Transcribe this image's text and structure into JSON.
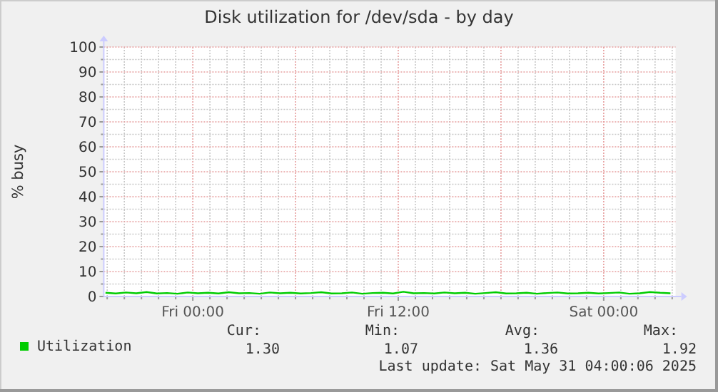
{
  "chart_data": {
    "type": "line",
    "title": "Disk utilization for /dev/sda - by day",
    "ylabel": "% busy",
    "x": [
      "2025-05-29T18:54",
      "2025-05-29T19:30",
      "2025-05-29T20:06",
      "2025-05-29T20:42",
      "2025-05-29T21:18",
      "2025-05-29T21:54",
      "2025-05-29T22:30",
      "2025-05-29T23:06",
      "2025-05-29T23:42",
      "2025-05-30T00:18",
      "2025-05-30T00:54",
      "2025-05-30T01:30",
      "2025-05-30T02:06",
      "2025-05-30T02:42",
      "2025-05-30T03:18",
      "2025-05-30T03:54",
      "2025-05-30T04:30",
      "2025-05-30T05:06",
      "2025-05-30T05:42",
      "2025-05-30T06:18",
      "2025-05-30T06:54",
      "2025-05-30T07:30",
      "2025-05-30T08:06",
      "2025-05-30T08:42",
      "2025-05-30T09:18",
      "2025-05-30T09:54",
      "2025-05-30T10:30",
      "2025-05-30T11:06",
      "2025-05-30T11:42",
      "2025-05-30T12:18",
      "2025-05-30T12:54",
      "2025-05-30T13:30",
      "2025-05-30T14:06",
      "2025-05-30T14:42",
      "2025-05-30T15:18",
      "2025-05-30T15:54",
      "2025-05-30T16:30",
      "2025-05-30T17:06",
      "2025-05-30T17:42",
      "2025-05-30T18:18",
      "2025-05-30T18:54",
      "2025-05-30T19:30",
      "2025-05-30T20:06",
      "2025-05-30T20:42",
      "2025-05-30T21:18",
      "2025-05-30T21:54",
      "2025-05-30T22:30",
      "2025-05-30T23:06",
      "2025-05-30T23:42",
      "2025-05-31T00:18",
      "2025-05-31T00:54",
      "2025-05-31T01:30",
      "2025-05-31T02:06",
      "2025-05-31T02:42",
      "2025-05-31T03:18",
      "2025-05-31T03:54"
    ],
    "series": [
      {
        "name": "Utilization",
        "color": "#00cc00",
        "values": [
          1.5,
          1.2,
          1.6,
          1.3,
          1.8,
          1.2,
          1.4,
          1.1,
          1.6,
          1.3,
          1.5,
          1.2,
          1.7,
          1.3,
          1.4,
          1.1,
          1.6,
          1.3,
          1.5,
          1.2,
          1.4,
          1.7,
          1.2,
          1.3,
          1.6,
          1.1,
          1.4,
          1.5,
          1.2,
          1.9,
          1.3,
          1.4,
          1.2,
          1.6,
          1.3,
          1.5,
          1.1,
          1.4,
          1.7,
          1.2,
          1.3,
          1.5,
          1.1,
          1.4,
          1.6,
          1.2,
          1.3,
          1.5,
          1.2,
          1.4,
          1.6,
          1.1,
          1.3,
          1.8,
          1.5,
          1.3
        ]
      }
    ],
    "xlim": [
      "2025-05-29T18:48",
      "2025-05-31T04:12"
    ],
    "xticks": [
      {
        "value": "2025-05-29T19:00",
        "label": null
      },
      {
        "value": "2025-05-29T20:00",
        "label": null
      },
      {
        "value": "2025-05-29T21:00",
        "label": null
      },
      {
        "value": "2025-05-29T22:00",
        "label": null
      },
      {
        "value": "2025-05-29T23:00",
        "label": null
      },
      {
        "value": "2025-05-30T00:00",
        "label": "Fri 00:00"
      },
      {
        "value": "2025-05-30T01:00",
        "label": null
      },
      {
        "value": "2025-05-30T02:00",
        "label": null
      },
      {
        "value": "2025-05-30T03:00",
        "label": null
      },
      {
        "value": "2025-05-30T04:00",
        "label": null
      },
      {
        "value": "2025-05-30T05:00",
        "label": null
      },
      {
        "value": "2025-05-30T06:00",
        "label": null
      },
      {
        "value": "2025-05-30T07:00",
        "label": null
      },
      {
        "value": "2025-05-30T08:00",
        "label": null
      },
      {
        "value": "2025-05-30T09:00",
        "label": null
      },
      {
        "value": "2025-05-30T10:00",
        "label": null
      },
      {
        "value": "2025-05-30T11:00",
        "label": null
      },
      {
        "value": "2025-05-30T12:00",
        "label": "Fri 12:00"
      },
      {
        "value": "2025-05-30T13:00",
        "label": null
      },
      {
        "value": "2025-05-30T14:00",
        "label": null
      },
      {
        "value": "2025-05-30T15:00",
        "label": null
      },
      {
        "value": "2025-05-30T16:00",
        "label": null
      },
      {
        "value": "2025-05-30T17:00",
        "label": null
      },
      {
        "value": "2025-05-30T18:00",
        "label": null
      },
      {
        "value": "2025-05-30T19:00",
        "label": null
      },
      {
        "value": "2025-05-30T20:00",
        "label": null
      },
      {
        "value": "2025-05-30T21:00",
        "label": null
      },
      {
        "value": "2025-05-30T22:00",
        "label": null
      },
      {
        "value": "2025-05-30T23:00",
        "label": null
      },
      {
        "value": "2025-05-31T00:00",
        "label": "Sat 00:00"
      },
      {
        "value": "2025-05-31T01:00",
        "label": null
      },
      {
        "value": "2025-05-31T02:00",
        "label": null
      },
      {
        "value": "2025-05-31T03:00",
        "label": null
      },
      {
        "value": "2025-05-31T04:00",
        "label": null
      }
    ],
    "ylim": [
      0,
      100
    ],
    "yticks": [
      0,
      {
        "value": 5,
        "label": null
      },
      10,
      {
        "value": 15,
        "label": null
      },
      20,
      {
        "value": 25,
        "label": null
      },
      30,
      {
        "value": 35,
        "label": null
      },
      40,
      {
        "value": 45,
        "label": null
      },
      50,
      {
        "value": 55,
        "label": null
      },
      60,
      {
        "value": 65,
        "label": null
      },
      70,
      {
        "value": 75,
        "label": null
      },
      80,
      {
        "value": 85,
        "label": null
      },
      90,
      {
        "value": 95,
        "label": null
      },
      100
    ],
    "grid": true,
    "legend": "bottom",
    "marker": "none",
    "line_style": "solid",
    "annotations": [
      "Cur:",
      "Min:",
      "Avg:",
      "Max:",
      "1.30",
      "1.07",
      "1.36",
      "1.92",
      "Last update: Sat May 31 04:00:06 2025"
    ]
  }
}
